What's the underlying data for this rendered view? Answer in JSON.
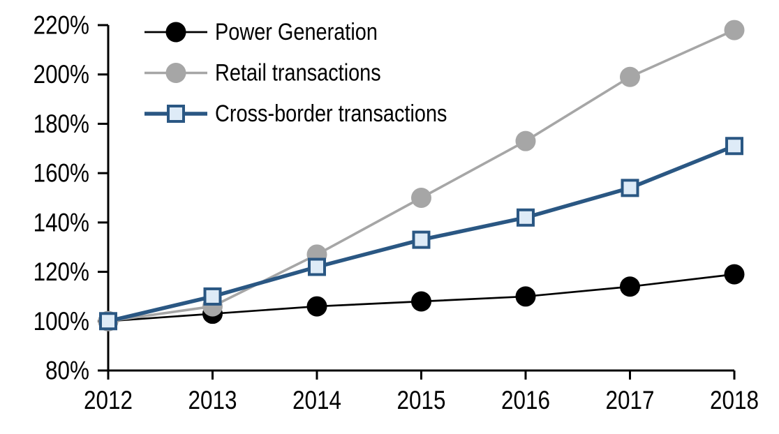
{
  "chart_data": {
    "type": "line",
    "title": "",
    "xlabel": "",
    "ylabel": "",
    "categories": [
      "2012",
      "2013",
      "2014",
      "2015",
      "2016",
      "2017",
      "2018"
    ],
    "series": [
      {
        "name": "Power Generation",
        "marker": "circle",
        "color": "#000000",
        "marker_fill": "#000000",
        "line_width": 2.7,
        "values": [
          100,
          103,
          106,
          108,
          110,
          114,
          119
        ]
      },
      {
        "name": "Retail transactions",
        "marker": "circle",
        "color": "#A6A6A6",
        "marker_fill": "#A6A6A6",
        "line_width": 3.6,
        "values": [
          100,
          106,
          127,
          150,
          173,
          199,
          218
        ]
      },
      {
        "name": "Cross-border transactions",
        "marker": "square",
        "color": "#2A5783",
        "marker_fill": "#DEEBF7",
        "line_width": 5.5,
        "values": [
          100,
          110,
          122,
          133,
          142,
          154,
          171
        ]
      }
    ],
    "yaxis": {
      "min": 80,
      "max": 220,
      "step": 20,
      "unit": "%",
      "tick_labels": [
        "80%",
        "100%",
        "120%",
        "140%",
        "160%",
        "180%",
        "200%",
        "220%"
      ]
    },
    "grid": false,
    "legend_position": "top-left",
    "background": "#FFFFFF",
    "axis_color": "#000000"
  }
}
